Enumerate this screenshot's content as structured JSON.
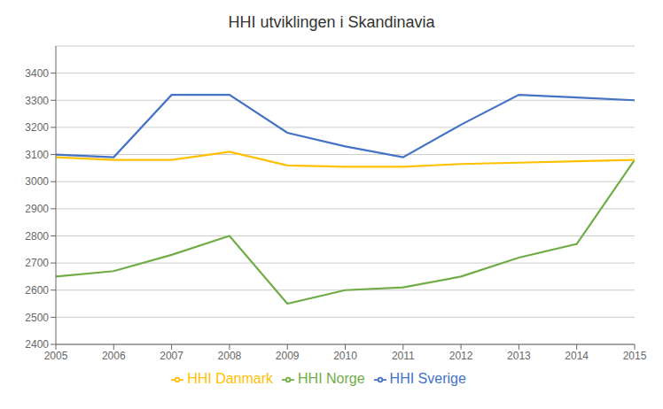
{
  "chart_data": {
    "type": "line",
    "title": "HHI utviklingen i Skandinavia",
    "x": [
      2005,
      2006,
      2007,
      2008,
      2009,
      2010,
      2011,
      2012,
      2013,
      2014,
      2015
    ],
    "series": [
      {
        "name": "HHI Norge",
        "color": "#70ad47",
        "values": [
          2650,
          2670,
          2730,
          2800,
          2550,
          2600,
          2610,
          2650,
          2720,
          2770,
          3080
        ]
      },
      {
        "name": "HHI Sverige",
        "color": "#4472c4",
        "values": [
          3100,
          3090,
          3320,
          3320,
          3180,
          3130,
          3090,
          3210,
          3320,
          3310,
          3300
        ]
      },
      {
        "name": "HHI Danmark",
        "color": "#ffc000",
        "values": [
          3090,
          3080,
          3080,
          3110,
          3060,
          3055,
          3055,
          3065,
          3070,
          3075,
          3080
        ]
      }
    ],
    "xlim": [
      2005,
      2015
    ],
    "xticks": [
      2005,
      2006,
      2007,
      2008,
      2009,
      2010,
      2011,
      2012,
      2013,
      2014,
      2015
    ],
    "ylim": [
      2400,
      3500
    ],
    "yticks": [
      2400,
      2500,
      2600,
      2700,
      2800,
      2900,
      3000,
      3100,
      3200,
      3300,
      3400
    ],
    "grid": true,
    "legend": "bottom"
  }
}
